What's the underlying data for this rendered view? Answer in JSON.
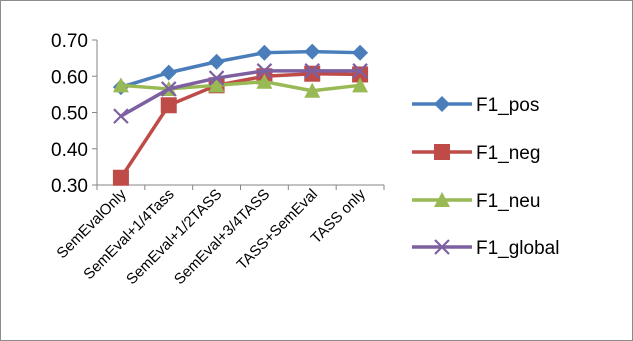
{
  "chart_data": {
    "type": "line",
    "title": "",
    "xlabel": "",
    "ylabel": "",
    "categories": [
      "SemEvalOnly",
      "SemEval+1/4Tass",
      "SemEval+1/2TASS",
      "SemEval+3/4TASS",
      "TASS+SemEval",
      "TASS only"
    ],
    "ylim": [
      0.3,
      0.7
    ],
    "yticks": [
      0.3,
      0.4,
      0.5,
      0.6,
      0.7
    ],
    "ytick_labels": [
      "0.30",
      "0.40",
      "0.50",
      "0.60",
      "0.70"
    ],
    "grid": false,
    "legend_position": "right",
    "series": [
      {
        "name": "F1_pos",
        "values": [
          0.57,
          0.61,
          0.64,
          0.665,
          0.668,
          0.665
        ],
        "color": "#4a7ebb",
        "marker": "diamond"
      },
      {
        "name": "F1_neg",
        "values": [
          0.32,
          0.52,
          0.575,
          0.6,
          0.607,
          0.605
        ],
        "color": "#be4b48",
        "marker": "square"
      },
      {
        "name": "F1_neu",
        "values": [
          0.575,
          0.565,
          0.575,
          0.585,
          0.56,
          0.575
        ],
        "color": "#98b954",
        "marker": "triangle"
      },
      {
        "name": "F1_global",
        "values": [
          0.49,
          0.565,
          0.595,
          0.615,
          0.615,
          0.615
        ],
        "color": "#7d60a0",
        "marker": "x"
      }
    ]
  }
}
